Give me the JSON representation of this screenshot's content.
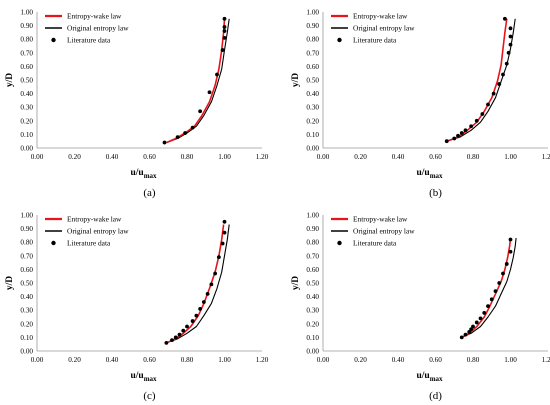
{
  "figure": {
    "panels": [
      {
        "caption": "(a)"
      },
      {
        "caption": "(b)"
      },
      {
        "caption": "(c)"
      },
      {
        "caption": "(d)"
      }
    ]
  },
  "colors": {
    "entropy_wake": "#e8141a",
    "original_entropy": "#000000",
    "literature": "#000000",
    "axis": "#9a9a9a",
    "grid": "#dcdcdc",
    "text": "#000000"
  },
  "chart_data": [
    {
      "type": "scatter",
      "panel": "(a)",
      "xlabel": {
        "main": "u/u",
        "sub": "max"
      },
      "ylabel": "y/D",
      "xlim": [
        0,
        1.2
      ],
      "ylim": [
        0,
        1.0
      ],
      "xticks": [
        "0.00",
        "0.20",
        "0.40",
        "0.60",
        "0.80",
        "1.00",
        "1.20"
      ],
      "yticks": [
        "0.00",
        "0.10",
        "0.20",
        "0.30",
        "0.40",
        "0.50",
        "0.60",
        "0.70",
        "0.80",
        "0.90",
        "1.00"
      ],
      "grid": false,
      "legend": "top-left",
      "series": [
        {
          "name": "Entropy-wake law",
          "kind": "line",
          "x": [
            0.69,
            0.74,
            0.79,
            0.84,
            0.88,
            0.92,
            0.95,
            0.97,
            0.985,
            0.995,
            1.0
          ],
          "y": [
            0.04,
            0.07,
            0.11,
            0.16,
            0.24,
            0.34,
            0.46,
            0.58,
            0.72,
            0.85,
            0.95
          ]
        },
        {
          "name": "Original entropy law",
          "kind": "line",
          "x": [
            0.69,
            0.75,
            0.8,
            0.85,
            0.89,
            0.93,
            0.96,
            0.985,
            1.0,
            1.015,
            1.025
          ],
          "y": [
            0.04,
            0.07,
            0.11,
            0.16,
            0.24,
            0.34,
            0.46,
            0.58,
            0.72,
            0.85,
            0.95
          ]
        },
        {
          "name": "Literature data",
          "kind": "points",
          "x": [
            0.68,
            0.75,
            0.79,
            0.83,
            0.87,
            0.92,
            0.96,
            0.99,
            1.0,
            1.0,
            1.0,
            1.0
          ],
          "y": [
            0.04,
            0.08,
            0.11,
            0.15,
            0.27,
            0.41,
            0.54,
            0.72,
            0.81,
            0.86,
            0.89,
            0.95
          ]
        }
      ]
    },
    {
      "type": "scatter",
      "panel": "(b)",
      "xlabel": {
        "main": "u/u",
        "sub": "max"
      },
      "ylabel": "y/D",
      "xlim": [
        0,
        1.2
      ],
      "ylim": [
        0,
        1.0
      ],
      "xticks": [
        "0.00",
        "0.20",
        "0.40",
        "0.60",
        "0.80",
        "1.00",
        "1.20"
      ],
      "yticks": [
        "0.00",
        "0.10",
        "0.20",
        "0.30",
        "0.40",
        "0.50",
        "0.60",
        "0.70",
        "0.80",
        "0.90",
        "1.00"
      ],
      "grid": false,
      "legend": "top-left",
      "series": [
        {
          "name": "Entropy-wake law",
          "kind": "line",
          "x": [
            0.66,
            0.72,
            0.77,
            0.82,
            0.86,
            0.9,
            0.93,
            0.95,
            0.96,
            0.97,
            0.98
          ],
          "y": [
            0.05,
            0.08,
            0.13,
            0.19,
            0.27,
            0.37,
            0.49,
            0.61,
            0.73,
            0.85,
            0.95
          ]
        },
        {
          "name": "Original entropy law",
          "kind": "line",
          "x": [
            0.66,
            0.73,
            0.79,
            0.84,
            0.88,
            0.92,
            0.95,
            0.98,
            1.0,
            1.015,
            1.025
          ],
          "y": [
            0.05,
            0.08,
            0.13,
            0.19,
            0.27,
            0.37,
            0.49,
            0.61,
            0.73,
            0.85,
            0.95
          ]
        },
        {
          "name": "Literature data",
          "kind": "points",
          "x": [
            0.66,
            0.7,
            0.72,
            0.74,
            0.76,
            0.79,
            0.82,
            0.85,
            0.88,
            0.91,
            0.94,
            0.96,
            0.98,
            0.99,
            1.0,
            1.0,
            1.0,
            0.97
          ],
          "y": [
            0.05,
            0.07,
            0.09,
            0.11,
            0.13,
            0.16,
            0.2,
            0.25,
            0.32,
            0.4,
            0.47,
            0.54,
            0.62,
            0.7,
            0.76,
            0.82,
            0.88,
            0.95
          ]
        }
      ]
    },
    {
      "type": "scatter",
      "panel": "(c)",
      "xlabel": {
        "main": "u/u",
        "sub": "max"
      },
      "ylabel": "y/D",
      "xlim": [
        0,
        1.2
      ],
      "ylim": [
        0,
        1.0
      ],
      "xticks": [
        "0.00",
        "0.20",
        "0.40",
        "0.60",
        "0.80",
        "1.00",
        "1.20"
      ],
      "yticks": [
        "0.00",
        "0.10",
        "0.20",
        "0.30",
        "0.40",
        "0.50",
        "0.60",
        "0.70",
        "0.80",
        "0.90",
        "1.00"
      ],
      "grid": false,
      "legend": "top-left",
      "series": [
        {
          "name": "Entropy-wake law",
          "kind": "line",
          "x": [
            0.69,
            0.74,
            0.78,
            0.82,
            0.86,
            0.89,
            0.92,
            0.95,
            0.97,
            0.985,
            0.995
          ],
          "y": [
            0.06,
            0.09,
            0.13,
            0.18,
            0.26,
            0.35,
            0.46,
            0.58,
            0.7,
            0.82,
            0.93
          ]
        },
        {
          "name": "Original entropy law",
          "kind": "line",
          "x": [
            0.69,
            0.75,
            0.8,
            0.85,
            0.89,
            0.93,
            0.96,
            0.985,
            1.0,
            1.015,
            1.025
          ],
          "y": [
            0.06,
            0.09,
            0.13,
            0.18,
            0.26,
            0.35,
            0.46,
            0.58,
            0.7,
            0.82,
            0.93
          ]
        },
        {
          "name": "Literature data",
          "kind": "points",
          "x": [
            0.69,
            0.72,
            0.74,
            0.76,
            0.78,
            0.8,
            0.83,
            0.85,
            0.87,
            0.89,
            0.91,
            0.93,
            0.95,
            0.97,
            0.99,
            1.0,
            1.0
          ],
          "y": [
            0.06,
            0.08,
            0.1,
            0.12,
            0.15,
            0.18,
            0.22,
            0.26,
            0.31,
            0.36,
            0.42,
            0.49,
            0.57,
            0.69,
            0.79,
            0.87,
            0.95
          ]
        }
      ]
    },
    {
      "type": "scatter",
      "panel": "(d)",
      "xlabel": {
        "main": "u/u",
        "sub": "max"
      },
      "ylabel": "y/D",
      "xlim": [
        0,
        1.2
      ],
      "ylim": [
        0,
        1.0
      ],
      "xticks": [
        "0.00",
        "0.20",
        "0.40",
        "0.60",
        "0.80",
        "1.00",
        "1.20"
      ],
      "yticks": [
        "0.00",
        "0.10",
        "0.20",
        "0.30",
        "0.40",
        "0.50",
        "0.60",
        "0.70",
        "0.80",
        "0.90",
        "1.00"
      ],
      "grid": false,
      "legend": "top-left",
      "series": [
        {
          "name": "Entropy-wake law",
          "kind": "line",
          "x": [
            0.74,
            0.78,
            0.82,
            0.86,
            0.89,
            0.92,
            0.95,
            0.97,
            0.985,
            0.995,
            1.0
          ],
          "y": [
            0.1,
            0.13,
            0.18,
            0.25,
            0.33,
            0.42,
            0.51,
            0.6,
            0.69,
            0.77,
            0.83
          ]
        },
        {
          "name": "Original entropy law",
          "kind": "line",
          "x": [
            0.74,
            0.79,
            0.84,
            0.88,
            0.92,
            0.95,
            0.98,
            1.0,
            1.015,
            1.025,
            1.03
          ],
          "y": [
            0.1,
            0.13,
            0.18,
            0.25,
            0.33,
            0.42,
            0.51,
            0.6,
            0.69,
            0.77,
            0.83
          ]
        },
        {
          "name": "Literature data",
          "kind": "points",
          "x": [
            0.74,
            0.76,
            0.78,
            0.79,
            0.8,
            0.82,
            0.84,
            0.86,
            0.88,
            0.9,
            0.92,
            0.94,
            0.96,
            0.98,
            1.0,
            1.0
          ],
          "y": [
            0.1,
            0.12,
            0.14,
            0.16,
            0.18,
            0.21,
            0.24,
            0.28,
            0.33,
            0.38,
            0.44,
            0.5,
            0.57,
            0.64,
            0.73,
            0.82
          ]
        }
      ]
    }
  ]
}
